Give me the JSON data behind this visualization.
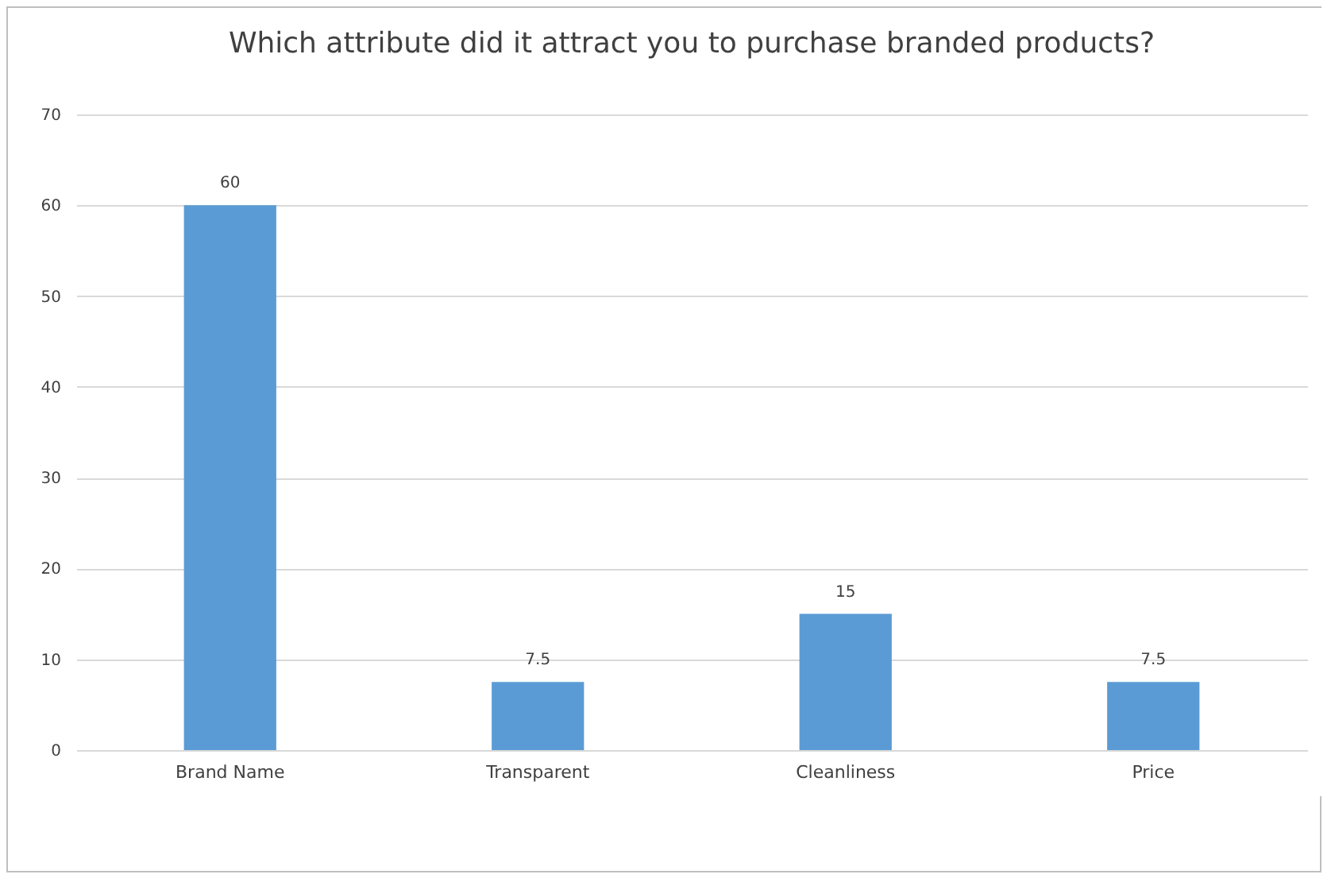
{
  "chart_data": {
    "type": "bar",
    "title": "Which attribute did it attract you to purchase branded products?",
    "categories": [
      "Brand Name",
      "Transparent",
      "Cleanliness",
      "Price"
    ],
    "values": [
      60,
      7.5,
      15,
      7.5
    ],
    "color": "#5b9bd5",
    "ylim": [
      0,
      70
    ],
    "yticks": [
      0,
      10,
      20,
      30,
      40,
      50,
      60,
      70
    ],
    "grid": "y",
    "data_labels": true
  }
}
